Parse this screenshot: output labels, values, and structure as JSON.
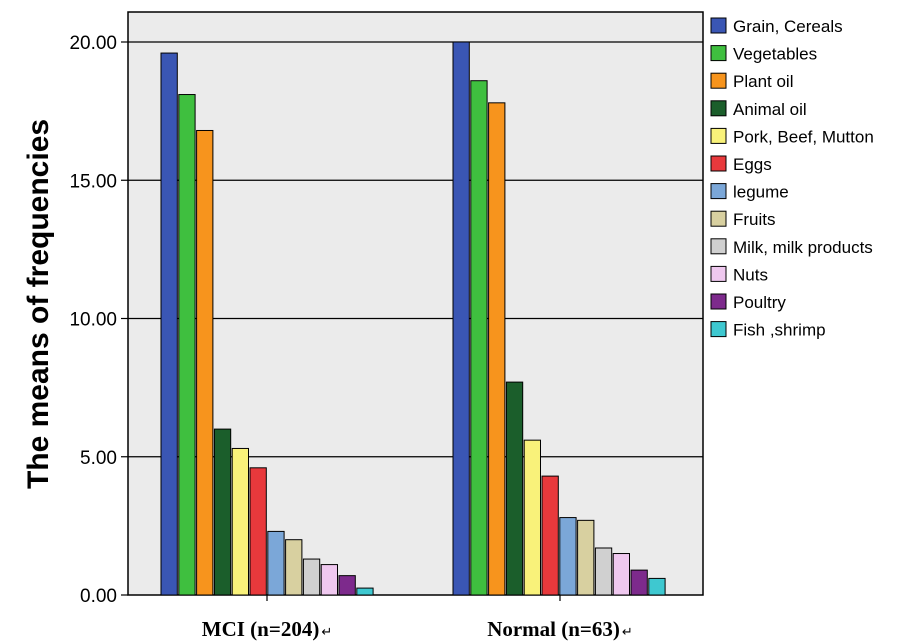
{
  "chart_data": {
    "type": "bar",
    "categories": [
      "MCI (n=204)",
      "Normal (n=63)"
    ],
    "category_suffix": "↵",
    "ylabel": "The means of frequencies",
    "xlabel": "",
    "ylim": [
      0,
      20
    ],
    "yticks": [
      "0.00",
      "5.00",
      "10.00",
      "15.00",
      "20.00"
    ],
    "grid": true,
    "legend_position": "right",
    "background": "#ebebeb",
    "series": [
      {
        "name": "Grain, Cereals",
        "color": "#3a56b4",
        "values": [
          19.6,
          20.0
        ]
      },
      {
        "name": "Vegetables",
        "color": "#3fbf3f",
        "values": [
          18.1,
          18.6
        ]
      },
      {
        "name": "Plant  oil",
        "color": "#f7941d",
        "values": [
          16.8,
          17.8
        ]
      },
      {
        "name": "Animal oil",
        "color": "#1b5e2b",
        "values": [
          6.0,
          7.7
        ]
      },
      {
        "name": "Pork, Beef, Mutton",
        "color": "#f9f27a",
        "values": [
          5.3,
          5.6
        ]
      },
      {
        "name": "Eggs",
        "color": "#e8393c",
        "values": [
          4.6,
          4.3
        ]
      },
      {
        "name": "legume",
        "color": "#7ba7d8",
        "values": [
          2.3,
          2.8
        ]
      },
      {
        "name": "Fruits",
        "color": "#d8d0a0",
        "values": [
          2.0,
          2.7
        ]
      },
      {
        "name": "Milk, milk products",
        "color": "#d0d0d0",
        "values": [
          1.3,
          1.7
        ]
      },
      {
        "name": "Nuts",
        "color": "#efc8ef",
        "values": [
          1.1,
          1.5
        ]
      },
      {
        "name": "Poultry",
        "color": "#7d2a8c",
        "values": [
          0.7,
          0.9
        ]
      },
      {
        "name": "Fish ,shrimp",
        "color": "#3ec8d0",
        "values": [
          0.25,
          0.6
        ]
      }
    ]
  }
}
